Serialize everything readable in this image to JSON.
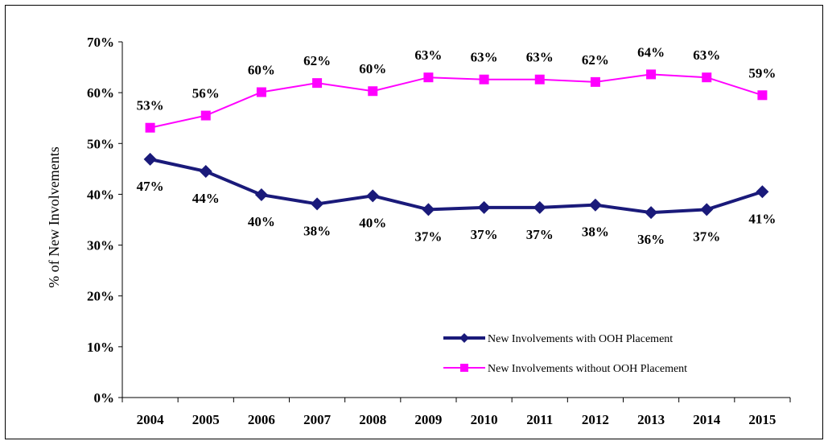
{
  "chart_data": {
    "type": "line",
    "title": "",
    "xlabel": "",
    "ylabel": "% of New Involvements",
    "ylim": [
      0,
      70
    ],
    "yticks": [
      "0%",
      "10%",
      "20%",
      "30%",
      "40%",
      "50%",
      "60%",
      "70%"
    ],
    "categories": [
      "2004",
      "2005",
      "2006",
      "2007",
      "2008",
      "2009",
      "2010",
      "2011",
      "2012",
      "2013",
      "2014",
      "2015"
    ],
    "grid": false,
    "legend_position": "bottom-right",
    "series": [
      {
        "name": "New Involvements with OOH Placement",
        "color": "#1a1a7a",
        "marker": "diamond",
        "values": [
          46.9,
          44.5,
          39.9,
          38.1,
          39.7,
          37.0,
          37.4,
          37.4,
          37.9,
          36.4,
          37.0,
          40.5
        ],
        "labels": [
          "47%",
          "44%",
          "40%",
          "38%",
          "40%",
          "37%",
          "37%",
          "37%",
          "38%",
          "36%",
          "37%",
          "41%"
        ]
      },
      {
        "name": "New Involvements without OOH Placement",
        "color": "#ff00ff",
        "marker": "square",
        "values": [
          53.1,
          55.5,
          60.1,
          61.9,
          60.3,
          63.0,
          62.6,
          62.6,
          62.1,
          63.6,
          63.0,
          59.5
        ],
        "labels": [
          "53%",
          "56%",
          "60%",
          "62%",
          "60%",
          "63%",
          "63%",
          "63%",
          "62%",
          "64%",
          "63%",
          "59%"
        ]
      }
    ]
  }
}
